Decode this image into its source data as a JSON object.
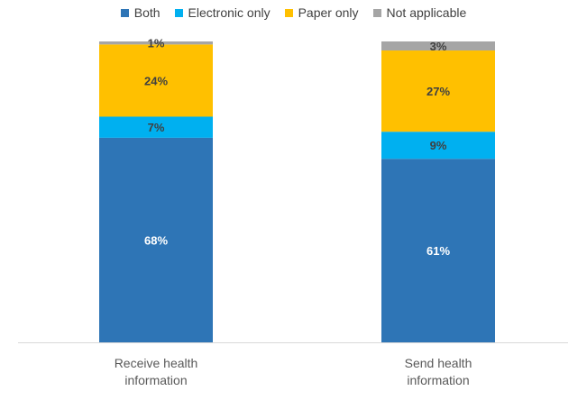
{
  "chart_data": {
    "type": "bar",
    "stacked": true,
    "categories": [
      "Receive health information",
      "Send health information"
    ],
    "category_lines": [
      [
        "Receive health",
        "information"
      ],
      [
        "Send health",
        "information"
      ]
    ],
    "series": [
      {
        "name": "Both",
        "color": "#2E75B6",
        "values": [
          68,
          61
        ],
        "labels": [
          "68%",
          "61%"
        ],
        "label_color": "#ffffff"
      },
      {
        "name": "Electronic only",
        "color": "#00B0F0",
        "values": [
          7,
          9
        ],
        "labels": [
          "7%",
          "9%"
        ],
        "label_color": "#404040"
      },
      {
        "name": "Paper only",
        "color": "#FFC000",
        "values": [
          24,
          27
        ],
        "labels": [
          "24%",
          "27%"
        ],
        "label_color": "#404040"
      },
      {
        "name": "Not applicable",
        "color": "#A5A5A5",
        "values": [
          1,
          3
        ],
        "labels": [
          "1%",
          "3%"
        ],
        "label_color": "#404040"
      }
    ],
    "ylim": [
      0,
      100
    ],
    "legend_position": "top",
    "grid": false
  }
}
